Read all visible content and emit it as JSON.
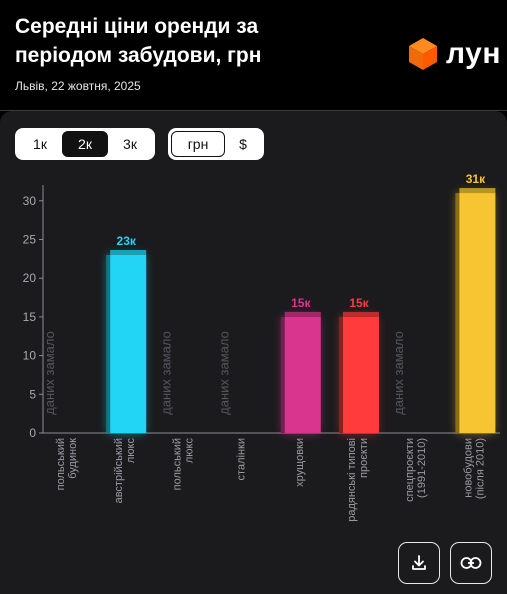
{
  "header": {
    "title": "Середні ціни оренди за періодом забудови, грн",
    "subtitle": "Львів, 22 жовтня, 2025",
    "logo_text": "лун",
    "logo_icon": "orange-cube-icon"
  },
  "controls": {
    "rooms": [
      "1к",
      "2к",
      "3к"
    ],
    "rooms_selected": "2к",
    "currency": [
      "грн",
      "$"
    ],
    "currency_selected": "грн"
  },
  "actions": {
    "download_icon": "download-icon",
    "link_icon": "link-icon"
  },
  "chart_data": {
    "type": "bar",
    "ylim": [
      0,
      31
    ],
    "yticks": [
      0,
      5,
      10,
      15,
      20,
      25,
      30
    ],
    "grid": false,
    "no_data_label": "даних замало",
    "categories": [
      {
        "label": [
          "польський",
          "будинок"
        ],
        "value": null,
        "value_label": "",
        "color": "#1a1a1a"
      },
      {
        "label": [
          "австрійський",
          "люкс"
        ],
        "value": 23,
        "value_label": "23к",
        "color": "#22d5f5"
      },
      {
        "label": [
          "польський",
          "люкс"
        ],
        "value": null,
        "value_label": "",
        "color": "#1a1a1a"
      },
      {
        "label": [
          "сталінки"
        ],
        "value": null,
        "value_label": "",
        "color": "#1a1a1a"
      },
      {
        "label": [
          "хрущовки"
        ],
        "value": 15,
        "value_label": "15к",
        "color": "#d9358f"
      },
      {
        "label": [
          "радянські типові",
          "проєкти"
        ],
        "value": 15,
        "value_label": "15к",
        "color": "#ff3b3b"
      },
      {
        "label": [
          "спецпроєкти",
          "(1991-2010)"
        ],
        "value": null,
        "value_label": "",
        "color": "#1a1a1a"
      },
      {
        "label": [
          "новобудови",
          "(після 2010)"
        ],
        "value": 31,
        "value_label": "31к",
        "color": "#f7c531"
      }
    ]
  }
}
